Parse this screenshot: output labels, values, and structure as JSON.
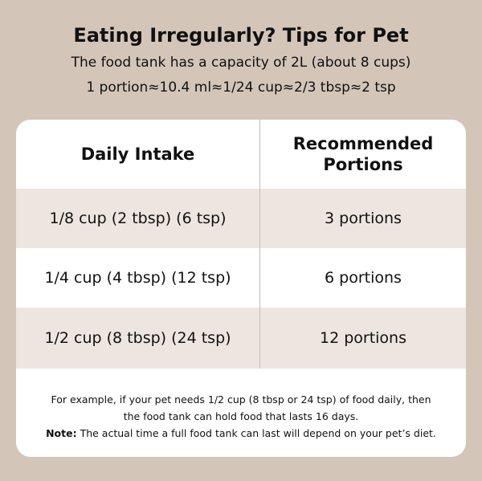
{
  "header": {
    "title": "Eating Irregularly? Tips for Pet",
    "capacity_line": "The food tank has a capacity of 2L (about 8 cups)",
    "portion_line": "1 portion≈10.4 ml≈1/24 cup≈2/3 tbsp≈2 tsp"
  },
  "table": {
    "columns": [
      "Daily Intake",
      "Recommended Portions"
    ],
    "rows": [
      {
        "intake": "1/8 cup (2 tbsp) (6 tsp)",
        "portions": "3 portions"
      },
      {
        "intake": "1/4 cup (4 tbsp) (12 tsp)",
        "portions": "6 portions"
      },
      {
        "intake": "1/2 cup (8 tbsp) (24 tsp)",
        "portions": "12 portions"
      }
    ]
  },
  "footer": {
    "example_line1": "For example, if your pet needs 1/2 cup (8 tbsp or 24 tsp) of food daily, then",
    "example_line2": "the food tank can hold food that lasts 16 days.",
    "note_label": "Note:",
    "note_text": " The actual time a full food tank can last will depend on your pet’s diet."
  }
}
